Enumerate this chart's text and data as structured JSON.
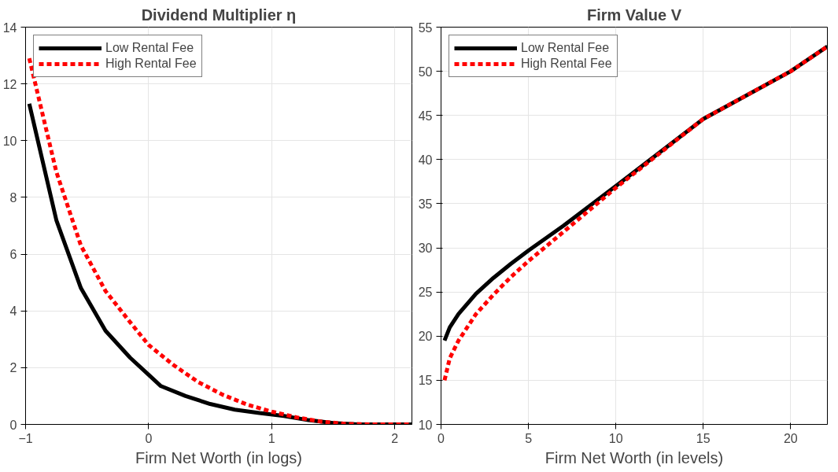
{
  "chart_data": [
    {
      "type": "line",
      "title": "Dividend Multiplier η",
      "xlabel": "Firm Net Worth (in logs)",
      "xlim": [
        -1,
        2.14
      ],
      "xticks": [
        -1,
        0,
        1,
        2
      ],
      "ylim": [
        0,
        14
      ],
      "yticks": [
        0,
        2,
        4,
        6,
        8,
        10,
        12,
        14
      ],
      "grid": true,
      "legend": "top left",
      "series": [
        {
          "name": "Low Rental Fee",
          "color": "#000000",
          "line_style": "solid",
          "x": [
            -0.97,
            -0.75,
            -0.55,
            -0.35,
            -0.15,
            0,
            0.1,
            0.3,
            0.5,
            0.7,
            0.9,
            1.1,
            1.3,
            1.5,
            1.7,
            2.14
          ],
          "values": [
            11.3,
            7.2,
            4.8,
            3.3,
            2.35,
            1.75,
            1.35,
            1.0,
            0.72,
            0.52,
            0.4,
            0.3,
            0.15,
            0.05,
            0,
            0
          ]
        },
        {
          "name": "High Rental Fee",
          "color": "#ff0000",
          "line_style": "dashed",
          "x": [
            -0.97,
            -0.75,
            -0.55,
            -0.35,
            -0.15,
            0,
            0.2,
            0.4,
            0.6,
            0.8,
            1.0,
            1.2,
            1.4,
            1.6,
            1.8,
            2.14
          ],
          "values": [
            12.9,
            8.9,
            6.3,
            4.7,
            3.6,
            2.8,
            2.1,
            1.5,
            1.05,
            0.7,
            0.45,
            0.25,
            0.1,
            0.02,
            0,
            0
          ]
        }
      ]
    },
    {
      "type": "line",
      "title": "Firm Value V",
      "xlabel": "Firm Net Worth (in levels)",
      "xlim": [
        0,
        22.1
      ],
      "xticks": [
        0,
        5,
        10,
        15,
        20
      ],
      "ylim": [
        10,
        55
      ],
      "yticks": [
        10,
        15,
        20,
        25,
        30,
        35,
        40,
        45,
        50,
        55
      ],
      "grid": true,
      "legend": "top left",
      "series": [
        {
          "name": "Low Rental Fee",
          "color": "#000000",
          "line_style": "solid",
          "x": [
            0.2,
            0.5,
            1,
            2,
            3,
            4,
            5,
            7,
            10,
            15,
            20,
            22.1
          ],
          "values": [
            19.5,
            21,
            22.5,
            24.8,
            26.6,
            28.2,
            29.7,
            32.5,
            37,
            44.6,
            50,
            52.8
          ]
        },
        {
          "name": "High Rental Fee",
          "color": "#ff0000",
          "line_style": "dashed",
          "x": [
            0.2,
            0.5,
            1,
            2,
            3,
            4,
            5,
            7,
            10,
            15,
            20,
            22.1
          ],
          "values": [
            15,
            17.5,
            19.5,
            22.5,
            24.7,
            26.7,
            28.5,
            31.8,
            36.8,
            44.6,
            50,
            52.8
          ]
        }
      ]
    }
  ]
}
